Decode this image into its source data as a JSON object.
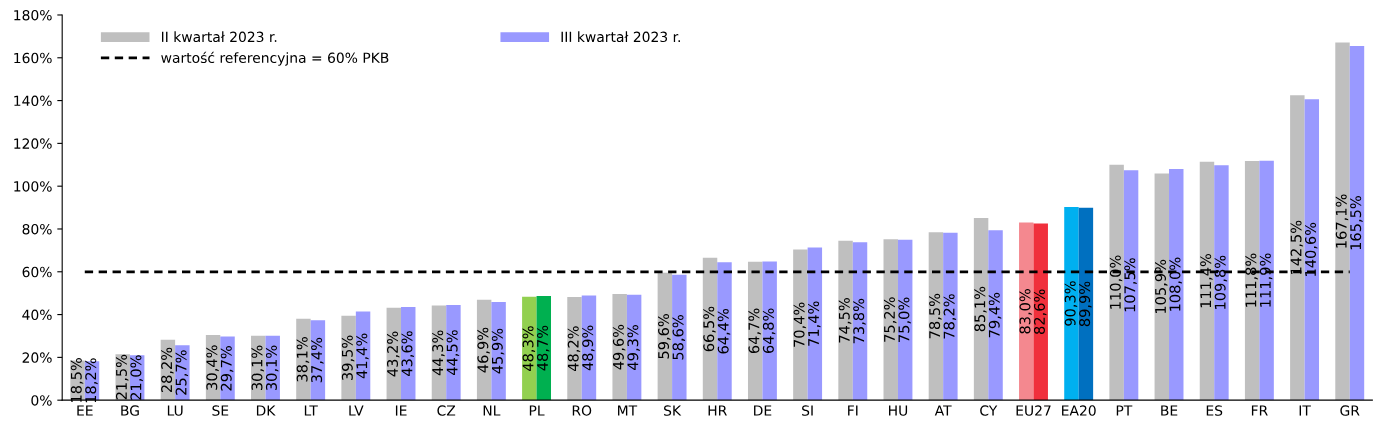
{
  "chart_data": {
    "type": "bar",
    "categories": [
      "EE",
      "BG",
      "LU",
      "SE",
      "DK",
      "LT",
      "LV",
      "IE",
      "CZ",
      "NL",
      "PL",
      "RO",
      "MT",
      "SK",
      "HR",
      "DE",
      "SI",
      "FI",
      "HU",
      "AT",
      "CY",
      "EU27",
      "EA20",
      "PT",
      "BE",
      "ES",
      "FR",
      "IT",
      "GR"
    ],
    "series": [
      {
        "name": "II kwartał 2023 r.",
        "color": "#bfbfbf",
        "colors": [
          "#bfbfbf",
          "#bfbfbf",
          "#bfbfbf",
          "#bfbfbf",
          "#bfbfbf",
          "#bfbfbf",
          "#bfbfbf",
          "#bfbfbf",
          "#bfbfbf",
          "#bfbfbf",
          "#92d050",
          "#bfbfbf",
          "#bfbfbf",
          "#bfbfbf",
          "#bfbfbf",
          "#bfbfbf",
          "#bfbfbf",
          "#bfbfbf",
          "#bfbfbf",
          "#bfbfbf",
          "#bfbfbf",
          "#f4888f",
          "#00b0f0",
          "#bfbfbf",
          "#bfbfbf",
          "#bfbfbf",
          "#bfbfbf",
          "#bfbfbf",
          "#bfbfbf"
        ],
        "values": [
          18.5,
          21.5,
          28.2,
          30.4,
          30.1,
          38.1,
          39.5,
          43.2,
          44.3,
          46.9,
          48.3,
          48.2,
          49.6,
          59.6,
          66.5,
          64.7,
          70.4,
          74.5,
          75.2,
          78.5,
          85.1,
          83.0,
          90.3,
          110.0,
          105.9,
          111.4,
          111.8,
          142.5,
          167.1
        ],
        "value_labels": [
          "18,5%",
          "21,5%",
          "28,2%",
          "30,4%",
          "30,1%",
          "38,1%",
          "39,5%",
          "43,2%",
          "44,3%",
          "46,9%",
          "48,3%",
          "48,2%",
          "49,6%",
          "59,6%",
          "66,5%",
          "64,7%",
          "70,4%",
          "74,5%",
          "75,2%",
          "78,5%",
          "85,1%",
          "83,0%",
          "90,3%",
          "110,0%",
          "105,9%",
          "111,4%",
          "111,8%",
          "142,5%",
          "167,1%"
        ]
      },
      {
        "name": "III kwartał 2023 r.",
        "color": "#9999ff",
        "colors": [
          "#9999ff",
          "#9999ff",
          "#9999ff",
          "#9999ff",
          "#9999ff",
          "#9999ff",
          "#9999ff",
          "#9999ff",
          "#9999ff",
          "#9999ff",
          "#00b050",
          "#9999ff",
          "#9999ff",
          "#9999ff",
          "#9999ff",
          "#9999ff",
          "#9999ff",
          "#9999ff",
          "#9999ff",
          "#9999ff",
          "#9999ff",
          "#f0303c",
          "#0070c0",
          "#9999ff",
          "#9999ff",
          "#9999ff",
          "#9999ff",
          "#9999ff",
          "#9999ff"
        ],
        "values": [
          18.2,
          21.0,
          25.7,
          29.7,
          30.1,
          37.4,
          41.4,
          43.6,
          44.5,
          45.9,
          48.7,
          48.9,
          49.3,
          58.6,
          64.4,
          64.8,
          71.4,
          73.8,
          75.0,
          78.2,
          79.4,
          82.6,
          89.9,
          107.5,
          108.0,
          109.8,
          111.9,
          140.6,
          165.5
        ],
        "value_labels": [
          "18,2%",
          "21,0%",
          "25,7%",
          "29,7%",
          "30,1%",
          "37,4%",
          "41,4%",
          "43,6%",
          "44,5%",
          "45,9%",
          "48,7%",
          "48,9%",
          "49,3%",
          "58,6%",
          "64,4%",
          "64,8%",
          "71,4%",
          "73,8%",
          "75,0%",
          "78,2%",
          "79,4%",
          "82,6%",
          "89,9%",
          "107,5%",
          "108,0%",
          "109,8%",
          "111,9%",
          "140,6%",
          "165,5%"
        ]
      }
    ],
    "ref_lines": [
      {
        "axis": "y",
        "value": 60,
        "label": "wartość referencyjna = 60% PKB",
        "color": "#000000",
        "line_style": "dashed"
      }
    ],
    "ylim": [
      0,
      180
    ],
    "yticks": [
      {
        "value": 0,
        "label": "0%"
      },
      {
        "value": 20,
        "label": "20%"
      },
      {
        "value": 40,
        "label": "40%"
      },
      {
        "value": 60,
        "label": "60%"
      },
      {
        "value": 80,
        "label": "80%"
      },
      {
        "value": 100,
        "label": "100%"
      },
      {
        "value": 120,
        "label": "120%"
      },
      {
        "value": 140,
        "label": "140%"
      },
      {
        "value": 160,
        "label": "160%"
      },
      {
        "value": 180,
        "label": "180%"
      }
    ],
    "grid": false,
    "legend": "top left"
  }
}
